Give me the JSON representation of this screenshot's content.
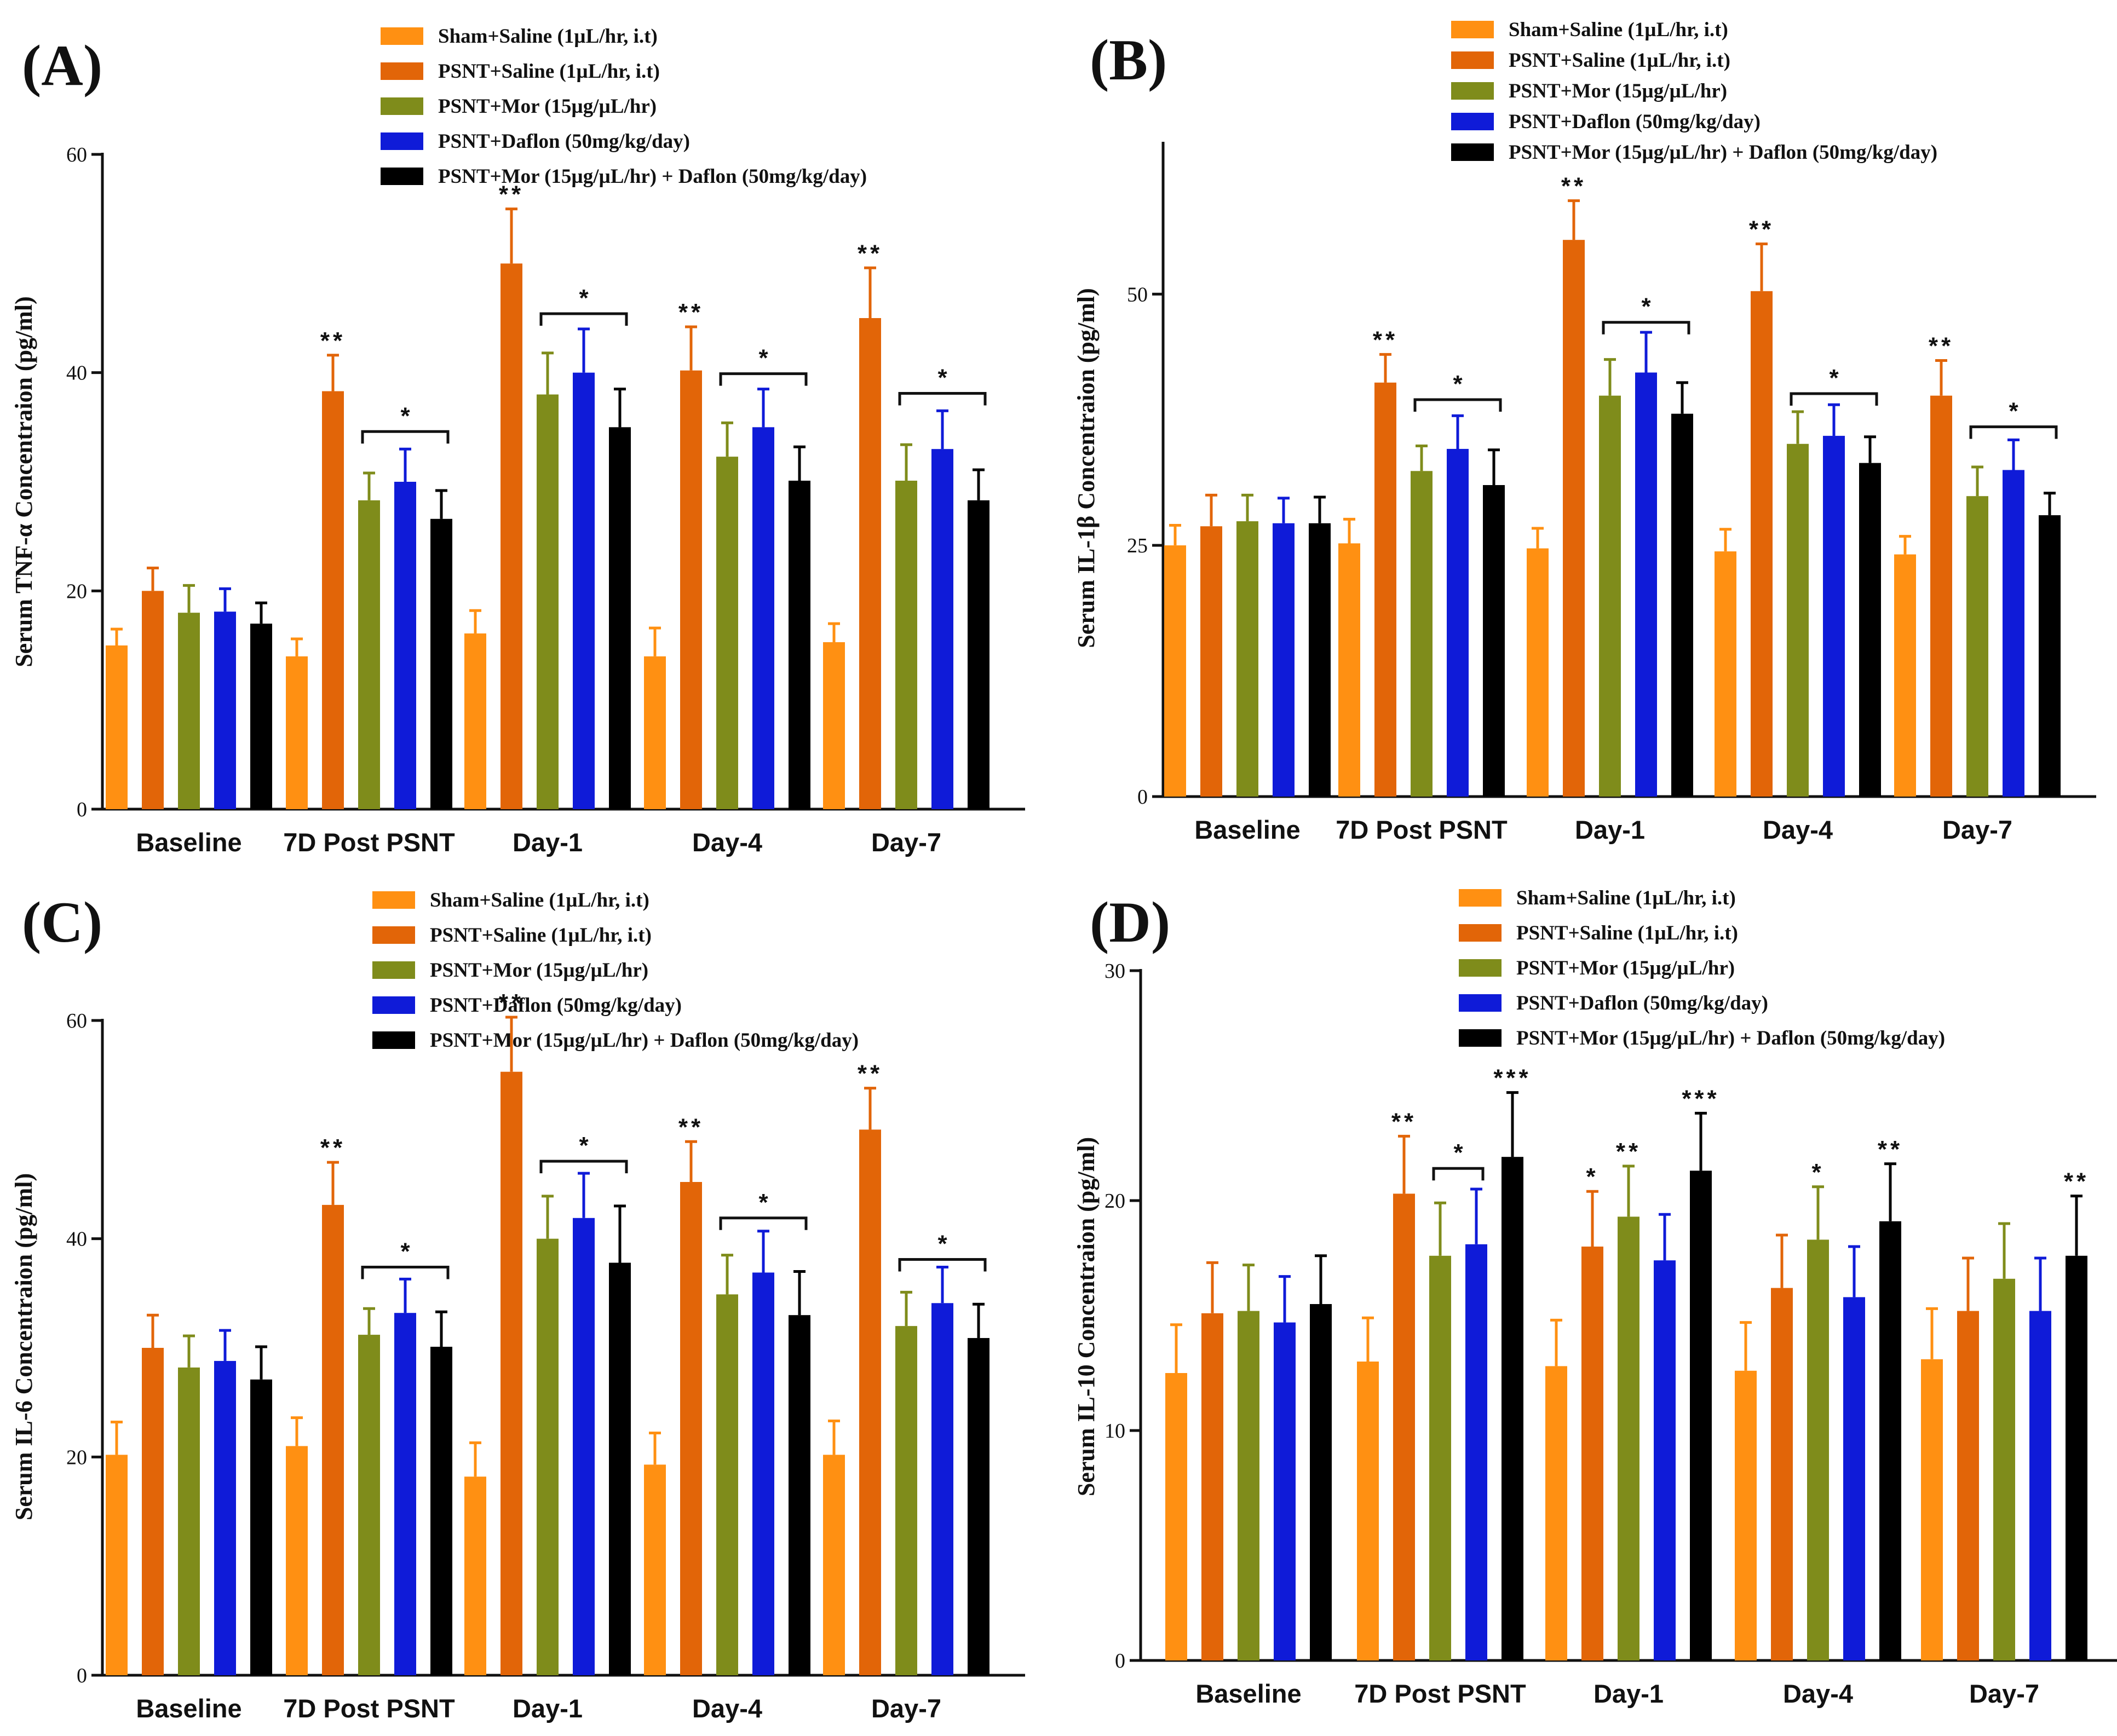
{
  "colors": {
    "series": [
      "#ff9012",
      "#e26508",
      "#7f8c1b",
      "#0f1bd8",
      "#000000"
    ],
    "axis": "#111111"
  },
  "chart_data": [
    {
      "type": "bar",
      "panel_label": "(A)",
      "ylabel": "Serum TNF-α  Concentraion (pg/ml)",
      "ylim": [
        0,
        60
      ],
      "yticks": [
        0,
        20,
        40,
        60
      ],
      "categories": [
        "Baseline",
        "7D Post PSNT",
        "Day-1",
        "Day-4",
        "Day-7"
      ],
      "series": [
        {
          "name": "Sham+Saline (1µL/hr, i.t)",
          "values": [
            15.0,
            14.0,
            16.1,
            14.0,
            15.3
          ],
          "errors": [
            1.5,
            1.6,
            2.1,
            2.6,
            1.7
          ]
        },
        {
          "name": "PSNT+Saline (1µL/hr, i.t)",
          "values": [
            20.0,
            38.3,
            50.0,
            40.2,
            45.0
          ],
          "errors": [
            2.1,
            3.3,
            5.0,
            4.0,
            4.6
          ]
        },
        {
          "name": "PSNT+Mor (15µg/µL/hr)",
          "values": [
            18.0,
            28.3,
            38.0,
            32.3,
            30.1
          ],
          "errors": [
            2.5,
            2.5,
            3.8,
            3.1,
            3.3
          ]
        },
        {
          "name": "PSNT+Daflon (50mg/kg/day)",
          "values": [
            18.1,
            30.0,
            40.0,
            35.0,
            33.0
          ],
          "errors": [
            2.1,
            3.0,
            4.0,
            3.5,
            3.5
          ]
        },
        {
          "name": "PSNT+Mor (15µg/µL/hr) + Daflon (50mg/kg/day)",
          "values": [
            17.0,
            26.6,
            35.0,
            30.1,
            28.3
          ],
          "errors": [
            1.9,
            2.6,
            3.5,
            3.1,
            2.8
          ]
        }
      ],
      "sig_stars": [
        {
          "category": 1,
          "series": 1,
          "text": "**"
        },
        {
          "category": 2,
          "series": 1,
          "text": "**"
        },
        {
          "category": 3,
          "series": 1,
          "text": "**"
        },
        {
          "category": 4,
          "series": 1,
          "text": "**"
        }
      ],
      "brackets": [
        {
          "category": 1,
          "from": 2,
          "to": 4,
          "y": 34.6,
          "text": "*"
        },
        {
          "category": 2,
          "from": 2,
          "to": 4,
          "y": 45.4,
          "text": "*"
        },
        {
          "category": 3,
          "from": 2,
          "to": 4,
          "y": 39.9,
          "text": "*"
        },
        {
          "category": 4,
          "from": 2,
          "to": 4,
          "y": 38.1,
          "text": "*"
        }
      ]
    },
    {
      "type": "bar",
      "panel_label": "(B)",
      "ylabel": "Serum IL-1β Concentraion (pg/ml)",
      "ylim": [
        0,
        65
      ],
      "yticks": [
        0,
        25,
        50
      ],
      "categories": [
        "Baseline",
        "7D Post PSNT",
        "Day-1",
        "Day-4",
        "Day-7"
      ],
      "series": [
        {
          "name": "Sham+Saline (1µL/hr, i.t)",
          "values": [
            25.0,
            25.2,
            24.7,
            24.4,
            24.1
          ],
          "errors": [
            2.0,
            2.4,
            2.0,
            2.2,
            1.8
          ]
        },
        {
          "name": "PSNT+Saline (1µL/hr, i.t)",
          "values": [
            26.9,
            41.2,
            55.4,
            50.3,
            39.9
          ],
          "errors": [
            3.1,
            2.8,
            3.9,
            4.7,
            3.5
          ]
        },
        {
          "name": "PSNT+Mor (15µg/µL/hr)",
          "values": [
            27.4,
            32.4,
            39.9,
            35.1,
            29.9
          ],
          "errors": [
            2.6,
            2.5,
            3.6,
            3.2,
            2.9
          ]
        },
        {
          "name": "PSNT+Daflon (50mg/kg/day)",
          "values": [
            27.2,
            34.6,
            42.2,
            35.9,
            32.5
          ],
          "errors": [
            2.5,
            3.3,
            4.0,
            3.1,
            3.0
          ]
        },
        {
          "name": "PSNT+Mor (15µg/µL/hr) + Daflon (50mg/kg/day)",
          "values": [
            27.2,
            31.0,
            38.1,
            33.2,
            28.0
          ],
          "errors": [
            2.6,
            3.5,
            3.1,
            2.6,
            2.2
          ]
        }
      ],
      "sig_stars": [
        {
          "category": 1,
          "series": 1,
          "text": "**"
        },
        {
          "category": 2,
          "series": 1,
          "text": "**"
        },
        {
          "category": 3,
          "series": 1,
          "text": "**"
        },
        {
          "category": 4,
          "series": 1,
          "text": "**"
        }
      ],
      "brackets": [
        {
          "category": 1,
          "from": 2,
          "to": 4,
          "y": 39.5,
          "text": "*"
        },
        {
          "category": 2,
          "from": 2,
          "to": 4,
          "y": 47.2,
          "text": "*"
        },
        {
          "category": 3,
          "from": 2,
          "to": 4,
          "y": 40.1,
          "text": "*"
        },
        {
          "category": 4,
          "from": 2,
          "to": 4,
          "y": 36.8,
          "text": "*"
        }
      ]
    },
    {
      "type": "bar",
      "panel_label": "(C)",
      "ylabel": "Serum IL-6  Concentraion (pg/ml)",
      "ylim": [
        0,
        60
      ],
      "yticks": [
        0,
        20,
        40,
        60
      ],
      "categories": [
        "Baseline",
        "7D Post PSNT",
        "Day-1",
        "Day-4",
        "Day-7"
      ],
      "series": [
        {
          "name": "Sham+Saline (1µL/hr, i.t)",
          "values": [
            20.2,
            21.0,
            18.2,
            19.3,
            20.2
          ],
          "errors": [
            3.0,
            2.6,
            3.1,
            2.9,
            3.1
          ]
        },
        {
          "name": "PSNT+Saline (1µL/hr, i.t)",
          "values": [
            30.0,
            43.1,
            55.3,
            45.2,
            50.0
          ],
          "errors": [
            3.0,
            3.9,
            5.0,
            3.7,
            3.8
          ]
        },
        {
          "name": "PSNT+Mor (15µg/µL/hr)",
          "values": [
            28.2,
            31.2,
            40.0,
            34.9,
            32.0
          ],
          "errors": [
            2.9,
            2.4,
            3.9,
            3.6,
            3.1
          ]
        },
        {
          "name": "PSNT+Daflon (50mg/kg/day)",
          "values": [
            28.8,
            33.2,
            41.9,
            36.9,
            34.1
          ],
          "errors": [
            2.8,
            3.1,
            4.1,
            3.8,
            3.3
          ]
        },
        {
          "name": "PSNT+Mor (15µg/µL/hr) + Daflon (50mg/kg/day)",
          "values": [
            27.1,
            30.1,
            37.8,
            33.0,
            30.9
          ],
          "errors": [
            3.0,
            3.2,
            5.2,
            4.0,
            3.1
          ]
        }
      ],
      "sig_stars": [
        {
          "category": 1,
          "series": 1,
          "text": "**"
        },
        {
          "category": 2,
          "series": 1,
          "text": "**"
        },
        {
          "category": 3,
          "series": 1,
          "text": "**"
        },
        {
          "category": 4,
          "series": 1,
          "text": "**"
        }
      ],
      "brackets": [
        {
          "category": 1,
          "from": 2,
          "to": 4,
          "y": 37.4,
          "text": "*"
        },
        {
          "category": 2,
          "from": 2,
          "to": 4,
          "y": 47.1,
          "text": "*"
        },
        {
          "category": 3,
          "from": 2,
          "to": 4,
          "y": 41.9,
          "text": "*"
        },
        {
          "category": 4,
          "from": 2,
          "to": 4,
          "y": 38.1,
          "text": "*"
        }
      ]
    },
    {
      "type": "bar",
      "panel_label": "(D)",
      "ylabel": "Serum IL-10  Concentraion (pg/ml)",
      "ylim": [
        0,
        30
      ],
      "yticks": [
        0,
        10,
        20,
        30
      ],
      "categories": [
        "Baseline",
        "7D Post PSNT",
        "Day-1",
        "Day-4",
        "Day-7"
      ],
      "series": [
        {
          "name": "Sham+Saline (1µL/hr, i.t)",
          "values": [
            12.5,
            13.0,
            12.8,
            12.6,
            13.1
          ],
          "errors": [
            2.1,
            1.9,
            2.0,
            2.1,
            2.2
          ]
        },
        {
          "name": "PSNT+Saline (1µL/hr, i.t)",
          "values": [
            15.1,
            20.3,
            18.0,
            16.2,
            15.2
          ],
          "errors": [
            2.2,
            2.5,
            2.4,
            2.3,
            2.3
          ]
        },
        {
          "name": "PSNT+Mor (15µg/µL/hr)",
          "values": [
            15.2,
            17.6,
            19.3,
            18.3,
            16.6
          ],
          "errors": [
            2.0,
            2.3,
            2.2,
            2.3,
            2.4
          ]
        },
        {
          "name": "PSNT+Daflon (50mg/kg/day)",
          "values": [
            14.7,
            18.1,
            17.4,
            15.8,
            15.2
          ],
          "errors": [
            2.0,
            2.4,
            2.0,
            2.2,
            2.3
          ]
        },
        {
          "name": "PSNT+Mor (15µg/µL/hr) + Daflon (50mg/kg/day)",
          "values": [
            15.5,
            21.9,
            21.3,
            19.1,
            17.6
          ],
          "errors": [
            2.1,
            2.8,
            2.5,
            2.5,
            2.6
          ]
        }
      ],
      "sig_stars": [
        {
          "category": 1,
          "series": 1,
          "text": "**"
        },
        {
          "category": 1,
          "series": 4,
          "text": "***"
        },
        {
          "category": 2,
          "series": 1,
          "text": "*"
        },
        {
          "category": 2,
          "series": 2,
          "text": "**"
        },
        {
          "category": 2,
          "series": 4,
          "text": "***"
        },
        {
          "category": 3,
          "series": 2,
          "text": "*"
        },
        {
          "category": 3,
          "series": 4,
          "text": "**"
        },
        {
          "category": 4,
          "series": 4,
          "text": "**"
        }
      ],
      "brackets": [
        {
          "category": 1,
          "from": 2,
          "to": 3,
          "y": 21.4,
          "text": "*"
        }
      ]
    }
  ]
}
